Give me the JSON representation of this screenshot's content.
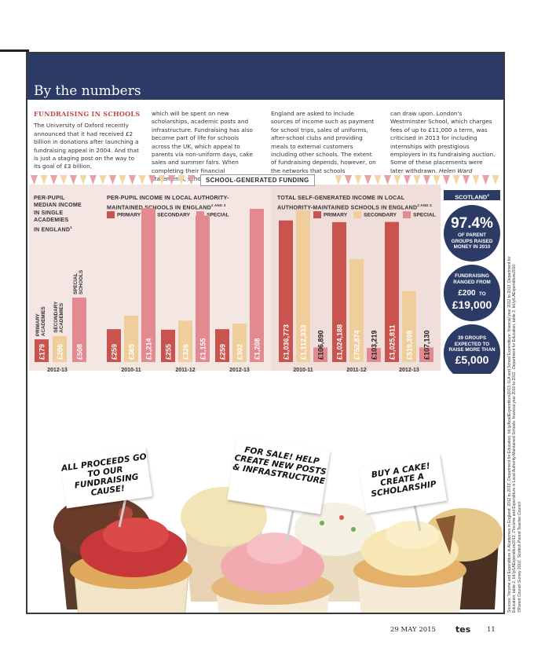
{
  "banner": {
    "title": "By the numbers"
  },
  "article": {
    "heading": "FUNDRAISING IN SCHOOLS",
    "columns": [
      "The University of Oxford recently announced that it had received £2 billion in donations after launching a fundraising appeal in 2004. And that is just a staging post on the way to its goal of £3 billion,",
      "which will be spent on new scholarships, academic posts and infrastructure. Fundraising has also become part of life for schools across the UK, which appeal to parents via non-uniform days, cake sales and summer fairs. When completing their financial statements, schools in",
      "England are asked to include sources of income such as payment for school trips, sales of uniforms, after-school clubs and providing meals to external customers including other schools. The extent of fundraising depends, however, on the networks that schools",
      "can draw upon. London's Westminster School, which charges fees of up to £11,000 a term, was criticised in 2013 for including internships with prestigious employers in its fundraising auction. Some of these placements were later withdrawn."
    ],
    "byline": "Helen Ward"
  },
  "section_label": "SCHOOL-GENERATED FUNDING",
  "colors": {
    "navy": "#2c3a66",
    "primary": "#c9534f",
    "secondary": "#f0ce9c",
    "special": "#e28a8f",
    "red_text": "#c0474a"
  },
  "chart_titles": {
    "median": [
      "PER-PUPIL",
      "MEDIAN INCOME",
      "IN SINGLE",
      "ACADEMIES",
      "IN ENGLAND"
    ],
    "median_sup": "1",
    "perpupil": [
      "PER-PUPIL INCOME IN LOCAL AUTHORITY-",
      "MAINTAINED SCHOOLS IN ENGLAND"
    ],
    "perpupil_sup": "2 AND 3",
    "total": [
      "TOTAL SELF-GENERATED INCOME IN LOCAL",
      "AUTHORITY-MAINTAINED SCHOOLS IN ENGLAND"
    ],
    "total_sup": "2 AND 3"
  },
  "legend": [
    "PRIMARY",
    "SECONDARY",
    "SPECIAL"
  ],
  "chart_data": [
    {
      "type": "bar",
      "title": "PER-PUPIL MEDIAN INCOME IN SINGLE ACADEMIES IN ENGLAND",
      "categories": [
        "2012-13"
      ],
      "series": [
        {
          "name": "PRIMARY ACADEMIES",
          "values": [
            179
          ],
          "labels": [
            "£179"
          ]
        },
        {
          "name": "SECONDARY ACADEMIES",
          "values": [
            206
          ],
          "labels": [
            "£206"
          ]
        },
        {
          "name": "SPECIAL SCHOOLS",
          "values": [
            508
          ],
          "labels": [
            "£508"
          ]
        }
      ]
    },
    {
      "type": "bar",
      "title": "PER-PUPIL INCOME IN LOCAL AUTHORITY-MAINTAINED SCHOOLS IN ENGLAND",
      "categories": [
        "2010-11",
        "2011-12",
        "2012-13"
      ],
      "series": [
        {
          "name": "PRIMARY",
          "values": [
            259,
            255,
            259
          ],
          "labels": [
            "£259",
            "£255",
            "£259"
          ]
        },
        {
          "name": "SECONDARY",
          "values": [
            365,
            326,
            302
          ],
          "labels": [
            "£365",
            "£326",
            "£302"
          ]
        },
        {
          "name": "SPECIAL",
          "values": [
            1214,
            1155,
            1208
          ],
          "labels": [
            "£1,214",
            "£1,155",
            "£1,208"
          ]
        }
      ]
    },
    {
      "type": "bar",
      "title": "TOTAL SELF-GENERATED INCOME IN LOCAL AUTHORITY-MAINTAINED SCHOOLS IN ENGLAND",
      "categories": [
        "2010-11",
        "2011-12",
        "2012-13"
      ],
      "series": [
        {
          "name": "PRIMARY",
          "values": [
            1036773,
            1024188,
            1025811
          ],
          "labels": [
            "£1,036,773",
            "£1,024,188",
            "£1,025,811"
          ]
        },
        {
          "name": "SECONDARY",
          "values": [
            1112333,
            752874,
            519398
          ],
          "labels": [
            "£1,112,333",
            "£752,874",
            "£519,398"
          ]
        },
        {
          "name": "SPECIAL",
          "values": [
            106890,
            103219,
            107130
          ],
          "labels": [
            "£106,890",
            "£103,219",
            "£107,130"
          ]
        }
      ]
    }
  ],
  "scotland": {
    "tag": "SCOTLAND",
    "tag_sup": "4",
    "stat1": {
      "big": "97.4%",
      "small": [
        "OF PARENT",
        "GROUPS RAISED",
        "MONEY IN 2010"
      ]
    },
    "stat2": {
      "small_top": [
        "FUNDRAISING",
        "RANGED FROM"
      ],
      "mid": "£200",
      "to": "TO",
      "big": "£19,000"
    },
    "stat3": {
      "small": [
        "39 GROUPS",
        "EXPECTED TO",
        "RAISE MORE THAN"
      ],
      "big": "£5,000"
    }
  },
  "sources": "Sources: 'Income and Expenditure in Academies in England: 2012 to 2013', Department for Education, bit.ly/AcadExpenditure2013; 1LA and School Expenditure: financial year 2012 to 2013, Department for Education, table 2, bit.ly/LAExpenditure2013; 2'Income and Expenditure in Local Authority-Maintained Schools: financial year 2010 to 2011', Department for Education, table 3, bit.ly/LAExpenditure2010; 3'Parent Council Survey 2010', Scottish Parent Teacher Council",
  "signs": [
    "ALL PROCEEDS GO TO OUR FUNDRAISING CAUSE!",
    "FOR SALE! HELP CREATE NEW POSTS & INFRASTRUCTURE",
    "BUY A CAKE! CREATE A SCHOLARSHIP"
  ],
  "footer": {
    "date": "29 MAY 2015",
    "brand": "tes",
    "page": "11"
  }
}
